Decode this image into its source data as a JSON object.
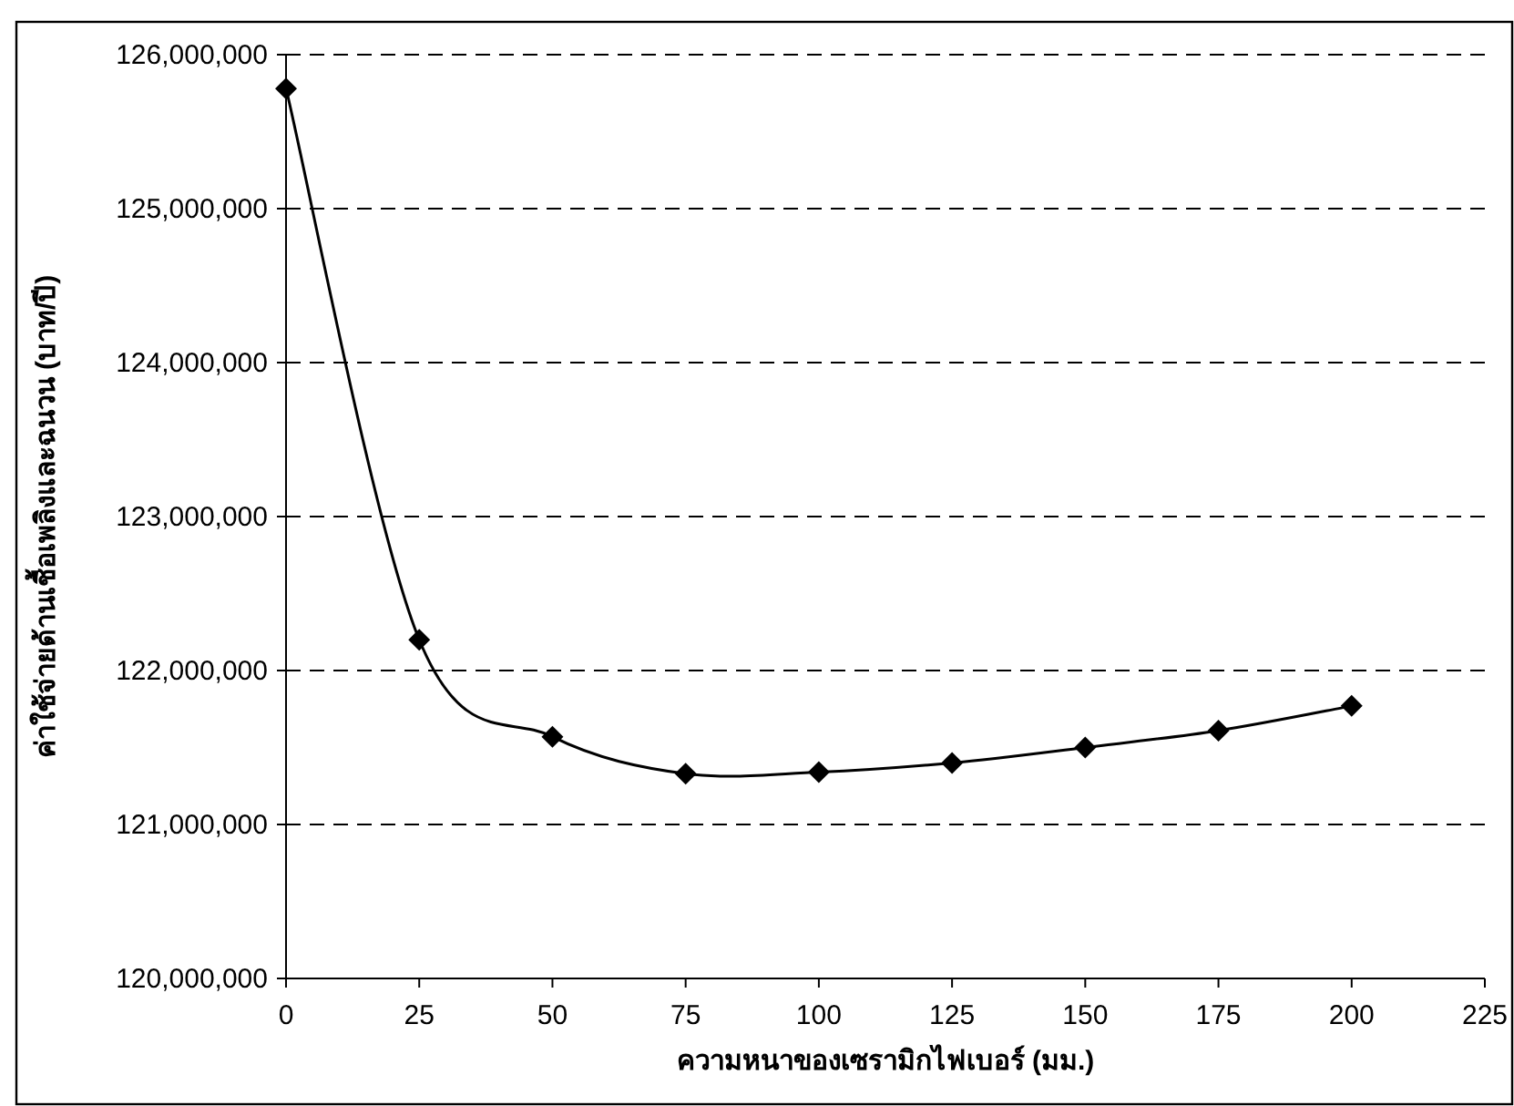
{
  "chart_data": {
    "type": "line",
    "xlabel": "ความหนาของเซรามิกไฟเบอร์ (มม.)",
    "ylabel": "ค่าใช้จ่ายด้านเชื้อเพลิงและฉนวน (บาท/ปี)",
    "x": [
      0,
      25,
      50,
      75,
      100,
      125,
      150,
      175,
      200
    ],
    "series": [
      {
        "color": "#000000",
        "values": [
          125780000,
          122200000,
          121570000,
          121330000,
          121340000,
          121400000,
          121500000,
          121610000,
          121770000
        ]
      }
    ],
    "xlim": [
      0,
      225
    ],
    "xticks": [
      0,
      25,
      50,
      75,
      100,
      125,
      150,
      175,
      200,
      225
    ],
    "ylim": [
      120000000,
      126000000
    ],
    "yticks": [
      {
        "value": 120000000,
        "label": "120,000,000"
      },
      {
        "value": 121000000,
        "label": "121,000,000"
      },
      {
        "value": 122000000,
        "label": "122,000,000"
      },
      {
        "value": 123000000,
        "label": "123,000,000"
      },
      {
        "value": 124000000,
        "label": "124,000,000"
      },
      {
        "value": 125000000,
        "label": "125,000,000"
      },
      {
        "value": 126000000,
        "label": "126,000,000"
      }
    ],
    "grid": "y",
    "marker": "diamond",
    "line_style": "solid"
  }
}
